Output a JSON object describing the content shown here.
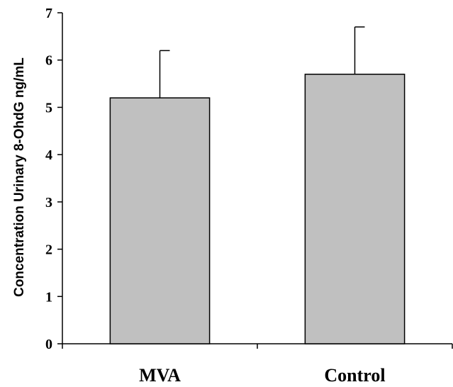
{
  "chart_data": {
    "type": "bar",
    "categories": [
      "MVA",
      "Control"
    ],
    "values": [
      5.2,
      5.7
    ],
    "error_upper": [
      1.0,
      1.0
    ],
    "title": "",
    "xlabel": "",
    "ylabel": "Concentration Urinary 8-OhdG ng/mL",
    "ylim": [
      0,
      7
    ],
    "yticks": [
      "0",
      "1",
      "2",
      "3",
      "4",
      "5",
      "6",
      "7"
    ],
    "grid": false,
    "bar_color": "#c0c0c0",
    "bar_edge_color": "#000000"
  }
}
